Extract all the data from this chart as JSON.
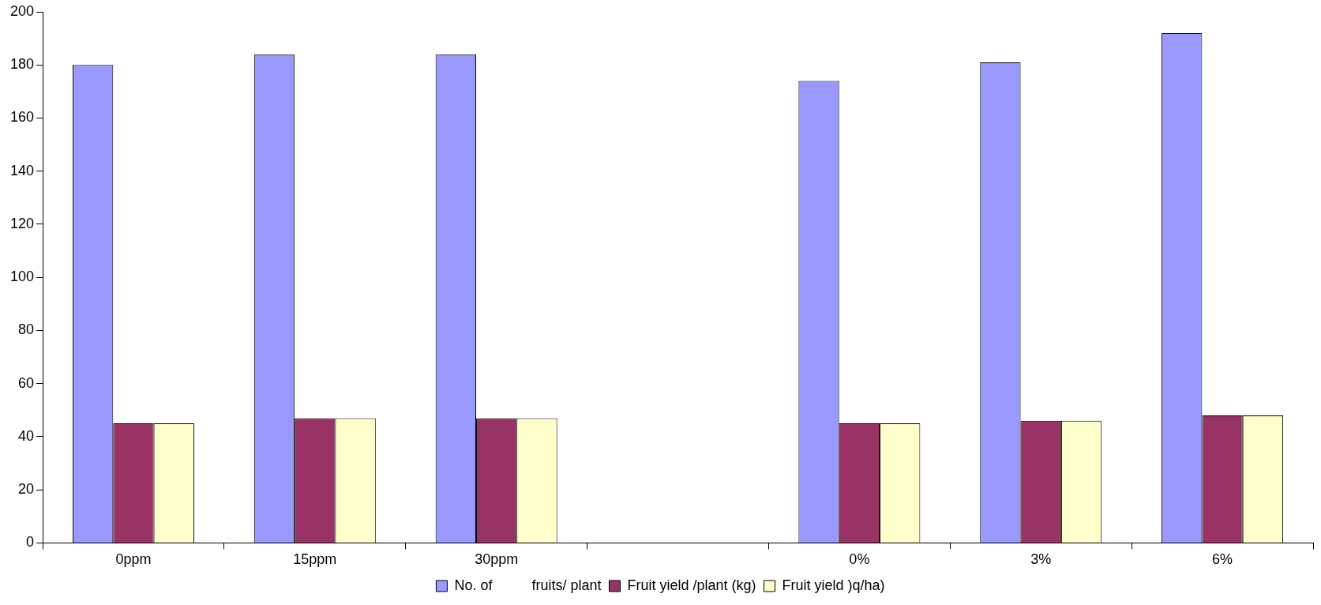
{
  "chart_data": {
    "type": "bar",
    "categories": [
      "0ppm",
      "15ppm",
      "30ppm",
      null,
      "0%",
      "3%",
      "6%"
    ],
    "series": [
      {
        "name": "No. of          fruits/ plant",
        "color": "#9999ff",
        "values": [
          180,
          184,
          184,
          null,
          174,
          181,
          192
        ]
      },
      {
        "name": "Fruit yield /plant (kg)",
        "color": "#993366",
        "values": [
          45,
          47,
          47,
          null,
          45,
          46,
          48
        ]
      },
      {
        "name": "Fruit yield )q/ha)",
        "color": "#ffffcc",
        "values": [
          45,
          47,
          47,
          null,
          45,
          46,
          48
        ]
      }
    ],
    "ylim": [
      0,
      200
    ],
    "yticks": [
      0,
      20,
      40,
      60,
      80,
      100,
      120,
      140,
      160,
      180,
      200
    ],
    "grid": false,
    "legend": "bottom"
  }
}
